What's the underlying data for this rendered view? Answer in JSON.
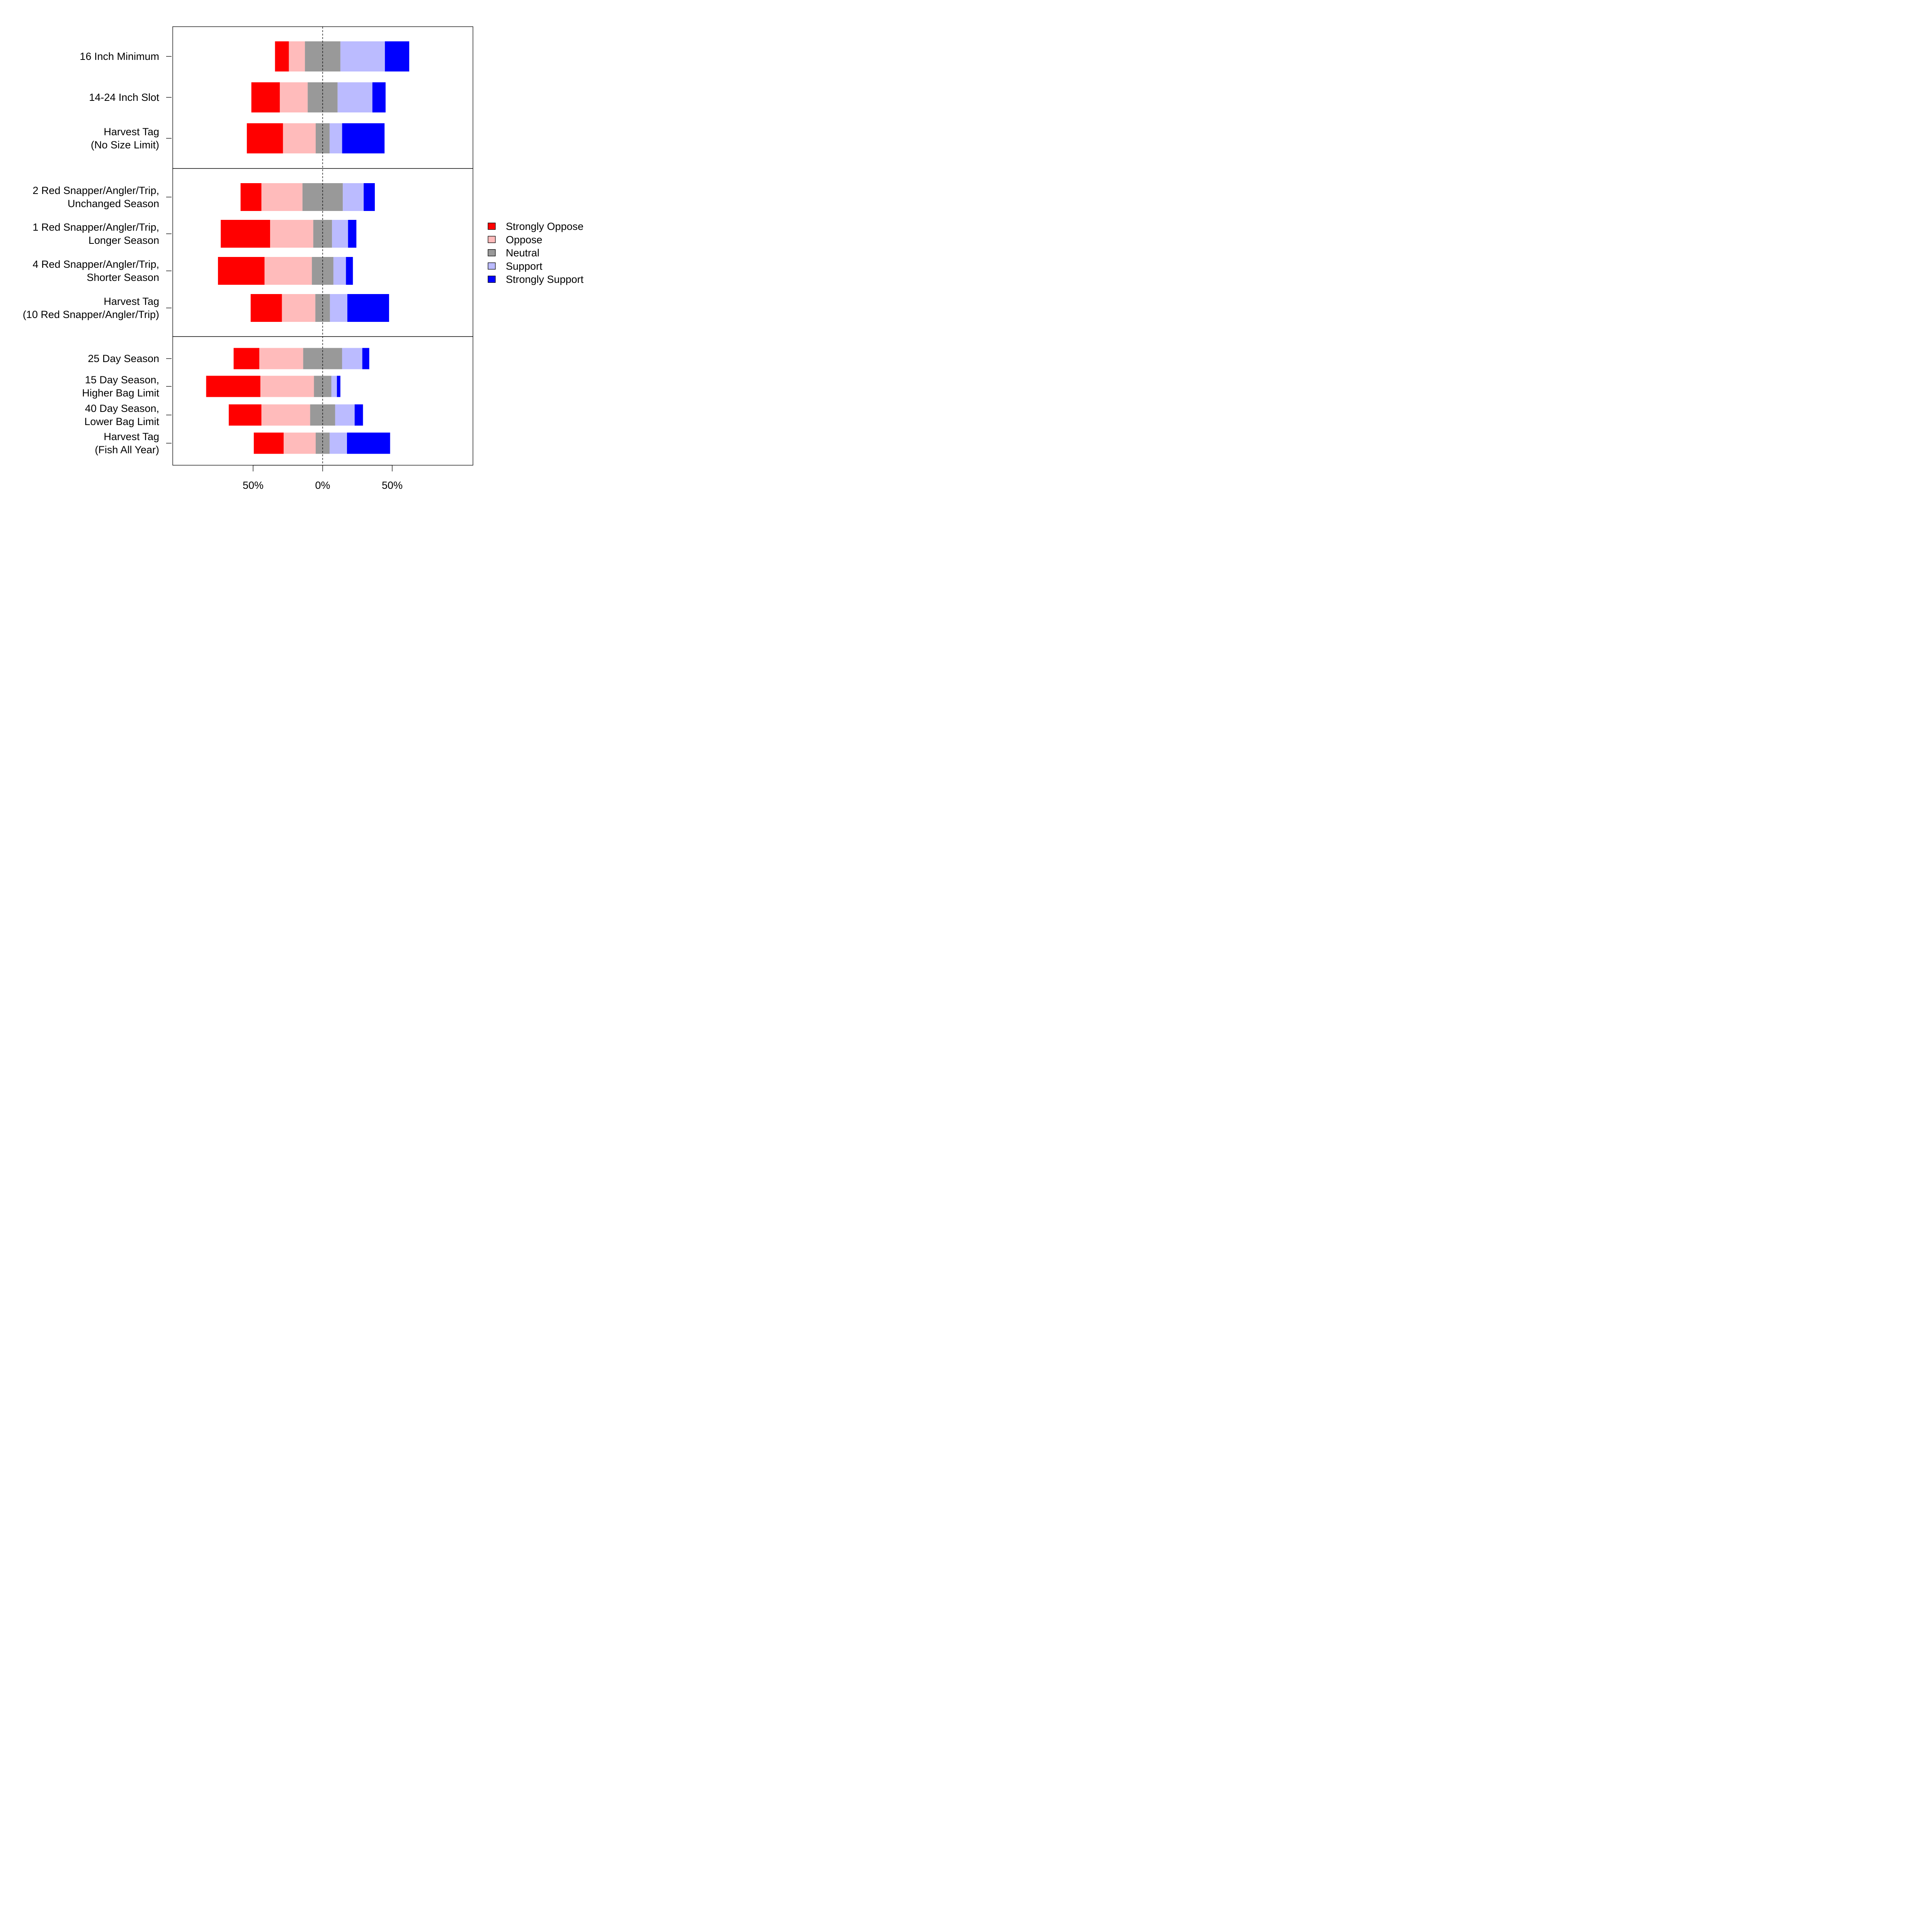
{
  "chart_data": {
    "type": "bar",
    "orientation": "horizontal",
    "stacking": "diverging",
    "title": "",
    "xlabel": "",
    "ylabel": "",
    "xlim": [
      -108,
      108
    ],
    "x_ticks": [
      {
        "value": -50,
        "label": "50%"
      },
      {
        "value": 0,
        "label": "0%"
      },
      {
        "value": 50,
        "label": "50%"
      }
    ],
    "center_line": "dashed",
    "grid": false,
    "legend": {
      "position": "right",
      "entries": [
        {
          "name": "Strongly Oppose",
          "color": "#ff0000"
        },
        {
          "name": "Oppose",
          "color": "#ffbbbb"
        },
        {
          "name": "Neutral",
          "color": "#999999"
        },
        {
          "name": "Support",
          "color": "#bbbbff"
        },
        {
          "name": "Strongly Support",
          "color": "#0000ff"
        }
      ]
    },
    "panels": [
      {
        "categories": [
          {
            "label": [
              "16 Inch Minimum"
            ],
            "values": [
              10,
              11.5,
              25.5,
              32,
              17.5
            ]
          },
          {
            "label": [
              "14-24 Inch Slot"
            ],
            "values": [
              20.5,
              20,
              21.5,
              25,
              9.5
            ]
          },
          {
            "label": [
              "Harvest Tag",
              "(No Size Limit)"
            ],
            "values": [
              26,
              23.5,
              10,
              9,
              30.5
            ]
          }
        ]
      },
      {
        "categories": [
          {
            "label": [
              "2 Red Snapper/Angler/Trip,",
              "Unchanged Season"
            ],
            "values": [
              15,
              29.5,
              29,
              15,
              8
            ]
          },
          {
            "label": [
              "1 Red Snapper/Angler/Trip,",
              "Longer Season"
            ],
            "values": [
              35.5,
              31,
              13.5,
              11.5,
              6
            ]
          },
          {
            "label": [
              "4 Red Snapper/Angler/Trip,",
              "Shorter Season"
            ],
            "values": [
              33.5,
              34,
              15.5,
              9,
              5
            ]
          },
          {
            "label": [
              "Harvest Tag",
              "(10 Red Snapper/Angler/Trip)"
            ],
            "values": [
              22.5,
              24,
              10.5,
              12.5,
              30
            ]
          }
        ]
      },
      {
        "categories": [
          {
            "label": [
              "25 Day Season"
            ],
            "values": [
              18.5,
              31.5,
              28,
              14.5,
              5
            ]
          },
          {
            "label": [
              "15 Day Season,",
              "Higher Bag Limit"
            ],
            "values": [
              39,
              38.5,
              12.5,
              4,
              2.5
            ]
          },
          {
            "label": [
              "40 Day Season,",
              "Lower Bag Limit"
            ],
            "values": [
              23.5,
              35,
              18,
              14,
              6
            ]
          },
          {
            "label": [
              "Harvest Tag",
              "(Fish All Year)"
            ],
            "values": [
              21.5,
              23,
              10,
              12.5,
              31
            ]
          }
        ]
      }
    ]
  }
}
